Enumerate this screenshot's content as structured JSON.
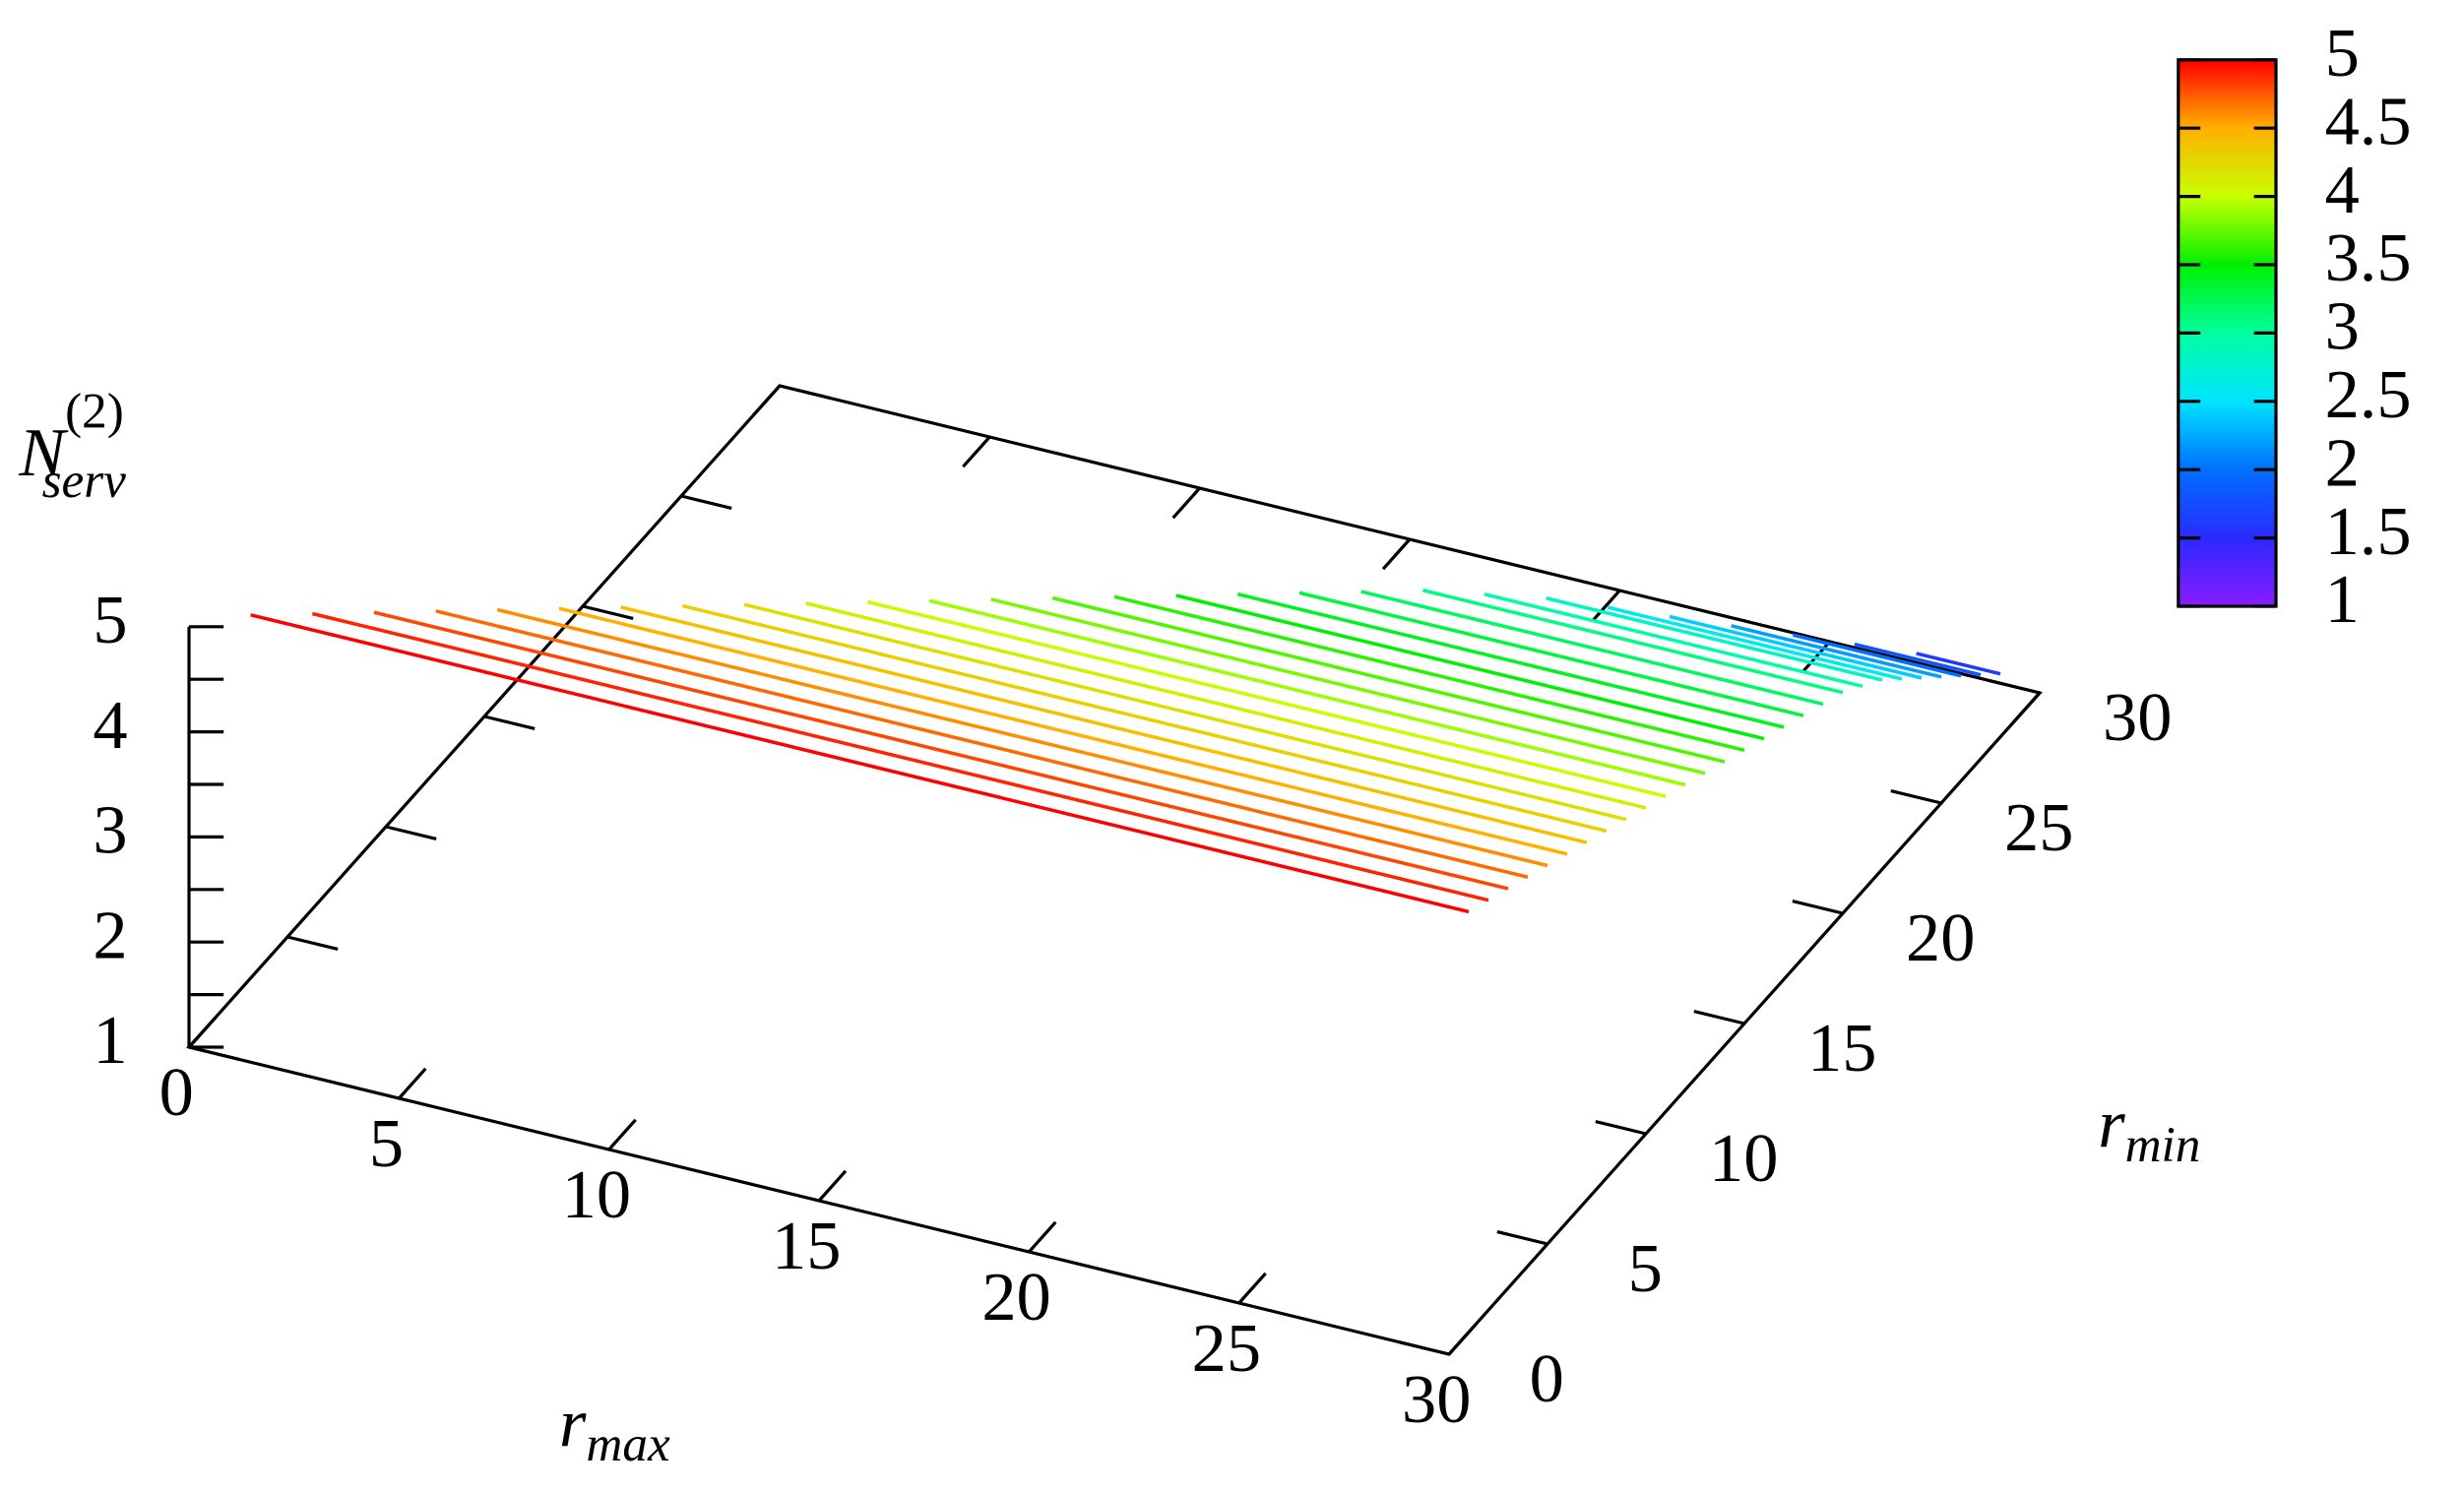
{
  "chart_data": {
    "type": "surface-lines",
    "xlabel": {
      "text": "r",
      "sub": "max"
    },
    "ylabel": {
      "text": "r",
      "sub": "min"
    },
    "zlabel": {
      "text": "N",
      "sub": "serv",
      "sup": "(2)"
    },
    "xlim": [
      0,
      30
    ],
    "ylim": [
      0,
      30
    ],
    "zlim": [
      1,
      5
    ],
    "xticks": [
      0,
      5,
      10,
      15,
      20,
      25,
      30
    ],
    "yticks": [
      0,
      5,
      10,
      15,
      20,
      25,
      30
    ],
    "zticks": [
      1,
      2,
      3,
      4,
      5
    ],
    "zminorticks": [
      1.5,
      2.5,
      3.5,
      4.5
    ],
    "cblim": [
      1,
      5
    ],
    "cbticks": [
      1,
      1.5,
      2,
      2.5,
      3,
      3.5,
      4,
      4.5,
      5
    ],
    "palette": [
      "#8a1cff",
      "#2a2aff",
      "#0070ff",
      "#00e4ff",
      "#00ffa0",
      "#00f000",
      "#c8ff00",
      "#ffb000",
      "#ff0000"
    ],
    "lines": [
      {
        "y": 1,
        "x": [
          1,
          30
        ],
        "z": 5.0
      },
      {
        "y": 2,
        "x": [
          2,
          30
        ],
        "z": 4.9
      },
      {
        "y": 3,
        "x": [
          3,
          30
        ],
        "z": 4.8
      },
      {
        "y": 4,
        "x": [
          4,
          30
        ],
        "z": 4.7
      },
      {
        "y": 5,
        "x": [
          5,
          30
        ],
        "z": 4.6
      },
      {
        "y": 6,
        "x": [
          6,
          30
        ],
        "z": 4.5
      },
      {
        "y": 7,
        "x": [
          7,
          30
        ],
        "z": 4.4
      },
      {
        "y": 8,
        "x": [
          8,
          30
        ],
        "z": 4.3
      },
      {
        "y": 9,
        "x": [
          9,
          30
        ],
        "z": 4.2
      },
      {
        "y": 10,
        "x": [
          10,
          30
        ],
        "z": 4.1
      },
      {
        "y": 11,
        "x": [
          11,
          30
        ],
        "z": 4.0
      },
      {
        "y": 12,
        "x": [
          12,
          30
        ],
        "z": 3.9
      },
      {
        "y": 13,
        "x": [
          13,
          30
        ],
        "z": 3.8
      },
      {
        "y": 14,
        "x": [
          14,
          30
        ],
        "z": 3.7
      },
      {
        "y": 15,
        "x": [
          15,
          30
        ],
        "z": 3.6
      },
      {
        "y": 16,
        "x": [
          16,
          30
        ],
        "z": 3.5
      },
      {
        "y": 17,
        "x": [
          17,
          30
        ],
        "z": 3.4
      },
      {
        "y": 18,
        "x": [
          18,
          30
        ],
        "z": 3.3
      },
      {
        "y": 19,
        "x": [
          19,
          30
        ],
        "z": 3.2
      },
      {
        "y": 20,
        "x": [
          20,
          30
        ],
        "z": 3.1
      },
      {
        "y": 21,
        "x": [
          21,
          30
        ],
        "z": 2.95
      },
      {
        "y": 22,
        "x": [
          22,
          30
        ],
        "z": 2.8
      },
      {
        "y": 23,
        "x": [
          23,
          30
        ],
        "z": 2.6
      },
      {
        "y": 24,
        "x": [
          24,
          30
        ],
        "z": 2.4
      },
      {
        "y": 25,
        "x": [
          25,
          30
        ],
        "z": 2.2
      },
      {
        "y": 26,
        "x": [
          26,
          30
        ],
        "z": 2.0
      },
      {
        "y": 27,
        "x": [
          27,
          30
        ],
        "z": 1.8
      },
      {
        "y": 28,
        "x": [
          28,
          30
        ],
        "z": 1.6
      }
    ]
  }
}
